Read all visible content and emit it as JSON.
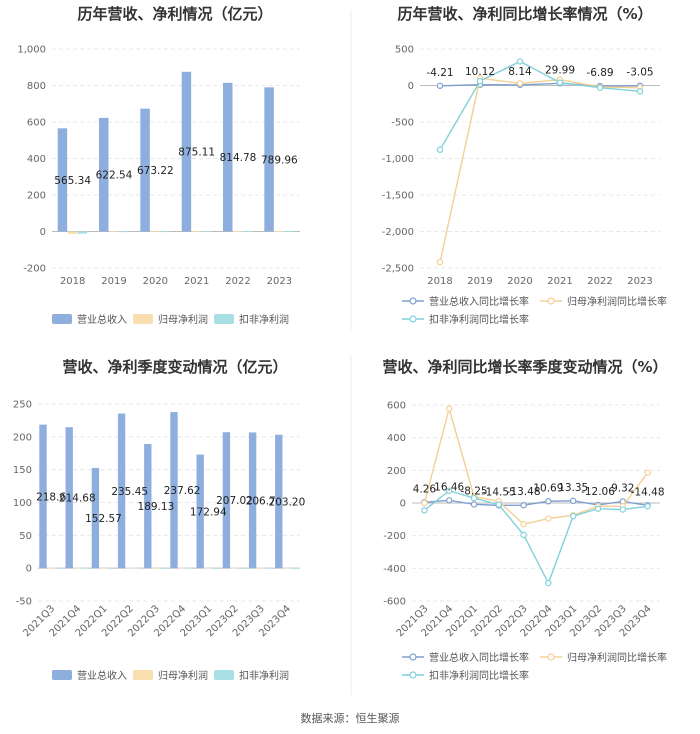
{
  "source": "数据来源：恒生聚源",
  "colors": {
    "rev": "#8eaedd",
    "np": "#f9dfb0",
    "dnp": "#a8dfe5",
    "grid": "#e8e8e8",
    "axis": "#999999"
  },
  "chart_data": [
    {
      "id": "annual-bar",
      "type": "bar",
      "title": "历年营收、净利情况（亿元）",
      "categories": [
        "2018",
        "2019",
        "2020",
        "2021",
        "2022",
        "2023"
      ],
      "yticks": [
        "-200",
        "0",
        "200",
        "400",
        "600",
        "800",
        "1,000"
      ],
      "ylim": [
        -200,
        1000
      ],
      "series": [
        {
          "name": "营业总收入",
          "values": [
            565.34,
            622.54,
            673.22,
            875.11,
            814.78,
            789.96
          ],
          "labels": [
            "565.34",
            "622.54",
            "673.22",
            "875.11",
            "814.78",
            "789.96"
          ]
        },
        {
          "name": "归母净利润",
          "values": [
            -14,
            1.3,
            1.4,
            1.9,
            1.8,
            1.7
          ]
        },
        {
          "name": "扣非净利润",
          "values": [
            -12,
            1,
            1.2,
            1.5,
            1.4,
            1.3
          ]
        }
      ]
    },
    {
      "id": "annual-line",
      "type": "line",
      "title": "历年营收、净利同比增长率情况（%）",
      "categories": [
        "2018",
        "2019",
        "2020",
        "2021",
        "2022",
        "2023"
      ],
      "yticks": [
        "-2,500",
        "-2,000",
        "-1,500",
        "-1,000",
        "-500",
        "0",
        "500"
      ],
      "ylim": [
        -2500,
        500
      ],
      "series": [
        {
          "name": "营业总收入同比增长率",
          "values": [
            -4.21,
            10.12,
            8.14,
            29.99,
            -6.89,
            -3.05
          ],
          "labels": [
            "-4.21",
            "10.12",
            "8.14",
            "29.99",
            "-6.89",
            "-3.05"
          ]
        },
        {
          "name": "归母净利润同比增长率",
          "values": [
            -2420,
            100,
            30,
            80,
            -20,
            -30
          ]
        },
        {
          "name": "扣非净利润同比增长率",
          "values": [
            -880,
            60,
            330,
            40,
            -30,
            -80
          ]
        }
      ]
    },
    {
      "id": "quarter-bar",
      "type": "bar",
      "title": "营收、净利季度变动情况（亿元）",
      "categories": [
        "2021Q3",
        "2021Q4",
        "2022Q1",
        "2022Q2",
        "2022Q3",
        "2022Q4",
        "2023Q1",
        "2023Q2",
        "2023Q3",
        "2023Q4"
      ],
      "yticks": [
        "-50",
        "0",
        "50",
        "100",
        "150",
        "200",
        "250"
      ],
      "ylim": [
        -50,
        250
      ],
      "series": [
        {
          "name": "营业总收入",
          "values": [
            218.6,
            214.68,
            152.57,
            235.45,
            189.13,
            237.62,
            172.94,
            207.02,
            206.7,
            203.2
          ],
          "labels": [
            "218.6",
            "214.68",
            "152.57",
            "235.45",
            "189.13",
            "237.62",
            "172.94",
            "207.02",
            "206.7",
            "203.20"
          ]
        },
        {
          "name": "归母净利润",
          "values": [
            0.6,
            0.7,
            0.5,
            0.8,
            0.5,
            0.7,
            0.5,
            0.6,
            0.6,
            0.5
          ]
        },
        {
          "name": "扣非净利润",
          "values": [
            0.5,
            0.6,
            0.4,
            0.7,
            0.4,
            0.6,
            0.4,
            0.5,
            0.5,
            0.4
          ]
        }
      ]
    },
    {
      "id": "quarter-line",
      "type": "line",
      "title": "营收、净利同比增长率季度变动情况（%）",
      "categories": [
        "2021Q3",
        "2021Q4",
        "2022Q1",
        "2022Q2",
        "2022Q3",
        "2022Q4",
        "2023Q1",
        "2023Q2",
        "2023Q3",
        "2023Q4"
      ],
      "yticks": [
        "-600",
        "-400",
        "-200",
        "0",
        "200",
        "400",
        "600"
      ],
      "ylim": [
        -600,
        600
      ],
      "series": [
        {
          "name": "营业总收入同比增长率",
          "values": [
            4.26,
            16.46,
            -8.25,
            -14.55,
            -13.48,
            10.69,
            13.35,
            -12.06,
            9.32,
            -14.48
          ],
          "labels": [
            "4.26",
            "16.46",
            "-8.25",
            "-14.55",
            "-13.48",
            "10.69",
            "13.35",
            "-12.06",
            "9.32",
            "-14.48"
          ]
        },
        {
          "name": "归母净利润同比增长率",
          "values": [
            0,
            578,
            40,
            10,
            -130,
            -95,
            -75,
            -20,
            -20,
            185
          ]
        },
        {
          "name": "扣非净利润同比增长率",
          "values": [
            -45,
            75,
            30,
            -10,
            -195,
            -490,
            -80,
            -35,
            -40,
            -20
          ]
        }
      ]
    }
  ]
}
